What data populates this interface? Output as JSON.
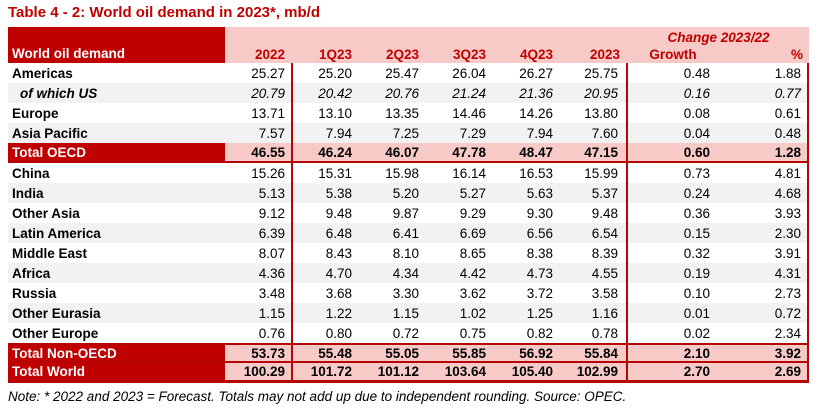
{
  "title": "Table 4 - 2: World oil demand in 2023*, mb/d",
  "table": {
    "header": {
      "label": "World oil demand",
      "change_label": "Change 2023/22",
      "columns": [
        "2022",
        "1Q23",
        "2Q23",
        "3Q23",
        "4Q23",
        "2023"
      ],
      "growth_label": "Growth",
      "percent_label": "%"
    },
    "rows": [
      {
        "label": "Americas",
        "type": "region",
        "shade": "white",
        "values": [
          "25.27",
          "25.20",
          "25.47",
          "26.04",
          "26.27",
          "25.75",
          "0.48",
          "1.88"
        ]
      },
      {
        "label": "of which US",
        "type": "subregion",
        "shade": "gray",
        "values": [
          "20.79",
          "20.42",
          "20.76",
          "21.24",
          "21.36",
          "20.95",
          "0.16",
          "0.77"
        ]
      },
      {
        "label": "Europe",
        "type": "region",
        "shade": "white",
        "values": [
          "13.71",
          "13.10",
          "13.35",
          "14.46",
          "14.26",
          "13.80",
          "0.08",
          "0.61"
        ]
      },
      {
        "label": "Asia Pacific",
        "type": "region",
        "shade": "gray",
        "values": [
          "7.57",
          "7.94",
          "7.25",
          "7.29",
          "7.94",
          "7.60",
          "0.04",
          "0.48"
        ]
      },
      {
        "label": "Total OECD",
        "type": "total-oecd",
        "shade": "pink",
        "values": [
          "46.55",
          "46.24",
          "46.07",
          "47.78",
          "48.47",
          "47.15",
          "0.60",
          "1.28"
        ]
      },
      {
        "label": "China",
        "type": "region",
        "shade": "white",
        "values": [
          "15.26",
          "15.31",
          "15.98",
          "16.14",
          "16.53",
          "15.99",
          "0.73",
          "4.81"
        ]
      },
      {
        "label": "India",
        "type": "region",
        "shade": "gray",
        "values": [
          "5.13",
          "5.38",
          "5.20",
          "5.27",
          "5.63",
          "5.37",
          "0.24",
          "4.68"
        ]
      },
      {
        "label": "Other Asia",
        "type": "region",
        "shade": "white",
        "values": [
          "9.12",
          "9.48",
          "9.87",
          "9.29",
          "9.30",
          "9.48",
          "0.36",
          "3.93"
        ]
      },
      {
        "label": "Latin America",
        "type": "region",
        "shade": "gray",
        "values": [
          "6.39",
          "6.48",
          "6.41",
          "6.69",
          "6.56",
          "6.54",
          "0.15",
          "2.30"
        ]
      },
      {
        "label": "Middle East",
        "type": "region",
        "shade": "white",
        "values": [
          "8.07",
          "8.43",
          "8.10",
          "8.65",
          "8.38",
          "8.39",
          "0.32",
          "3.91"
        ]
      },
      {
        "label": "Africa",
        "type": "region",
        "shade": "gray",
        "values": [
          "4.36",
          "4.70",
          "4.34",
          "4.42",
          "4.73",
          "4.55",
          "0.19",
          "4.31"
        ]
      },
      {
        "label": "Russia",
        "type": "region",
        "shade": "white",
        "values": [
          "3.48",
          "3.68",
          "3.30",
          "3.62",
          "3.72",
          "3.58",
          "0.10",
          "2.73"
        ]
      },
      {
        "label": "Other Eurasia",
        "type": "region",
        "shade": "gray",
        "values": [
          "1.15",
          "1.22",
          "1.15",
          "1.02",
          "1.25",
          "1.16",
          "0.01",
          "0.72"
        ]
      },
      {
        "label": "Other Europe",
        "type": "region",
        "shade": "white",
        "values": [
          "0.76",
          "0.80",
          "0.72",
          "0.75",
          "0.82",
          "0.78",
          "0.02",
          "2.34"
        ]
      },
      {
        "label": "Total Non-OECD",
        "type": "total-nonoecd",
        "shade": "pink",
        "values": [
          "53.73",
          "55.48",
          "55.05",
          "55.85",
          "56.92",
          "55.84",
          "2.10",
          "3.92"
        ]
      },
      {
        "label": "Total World",
        "type": "total-world",
        "shade": "pink",
        "values": [
          "100.29",
          "101.72",
          "101.12",
          "103.64",
          "105.40",
          "102.99",
          "2.70",
          "2.69"
        ]
      }
    ]
  },
  "note": "Note: * 2022 and 2023 = Forecast. Totals may not add up due to independent rounding. Source: OPEC.",
  "colors": {
    "dark_red": "#c00000",
    "border_red": "#b40404",
    "pink": "#f8cac7",
    "row_alt_gray": "#f2f2f2",
    "text": "#000000",
    "background": "#ffffff"
  }
}
